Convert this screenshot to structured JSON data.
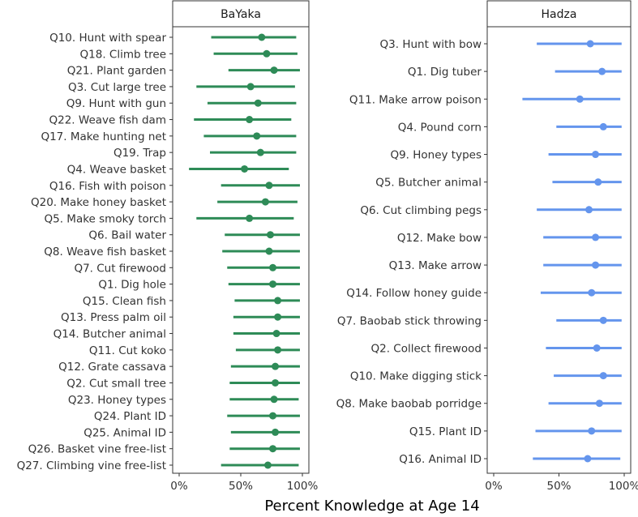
{
  "chart_data": {
    "type": "dot-and-whisker",
    "xlabel": "Percent Knowledge at Age 14",
    "xticks": [
      "0%",
      "50%",
      "100%"
    ],
    "xlim": [
      0,
      100
    ],
    "panels": [
      {
        "name": "BaYaka",
        "color": "#2e8b57",
        "items": [
          {
            "label": "Q10. Hunt with spear",
            "est": 67,
            "low": 26,
            "high": 95
          },
          {
            "label": "Q18. Climb tree",
            "est": 71,
            "low": 28,
            "high": 96
          },
          {
            "label": "Q21. Plant garden",
            "est": 77,
            "low": 40,
            "high": 98
          },
          {
            "label": "Q3. Cut large tree",
            "est": 58,
            "low": 14,
            "high": 94
          },
          {
            "label": "Q9. Hunt with gun",
            "est": 64,
            "low": 23,
            "high": 95
          },
          {
            "label": "Q22. Weave fish dam",
            "est": 57,
            "low": 12,
            "high": 91
          },
          {
            "label": "Q17. Make hunting net",
            "est": 63,
            "low": 20,
            "high": 95
          },
          {
            "label": "Q19. Trap",
            "est": 66,
            "low": 25,
            "high": 95
          },
          {
            "label": "Q4. Weave basket",
            "est": 53,
            "low": 8,
            "high": 89
          },
          {
            "label": "Q16. Fish with poison",
            "est": 73,
            "low": 34,
            "high": 98
          },
          {
            "label": "Q20. Make honey basket",
            "est": 70,
            "low": 31,
            "high": 96
          },
          {
            "label": "Q5. Make smoky torch",
            "est": 57,
            "low": 14,
            "high": 93
          },
          {
            "label": "Q6. Bail water",
            "est": 74,
            "low": 37,
            "high": 98
          },
          {
            "label": "Q8. Weave fish basket",
            "est": 73,
            "low": 35,
            "high": 98
          },
          {
            "label": "Q7. Cut firewood",
            "est": 76,
            "low": 39,
            "high": 98
          },
          {
            "label": "Q1. Dig hole",
            "est": 76,
            "low": 40,
            "high": 98
          },
          {
            "label": "Q15. Clean fish",
            "est": 80,
            "low": 45,
            "high": 98
          },
          {
            "label": "Q13. Press palm oil",
            "est": 80,
            "low": 44,
            "high": 98
          },
          {
            "label": "Q14. Butcher animal",
            "est": 79,
            "low": 44,
            "high": 98
          },
          {
            "label": "Q11. Cut koko",
            "est": 80,
            "low": 46,
            "high": 98
          },
          {
            "label": "Q12. Grate cassava",
            "est": 78,
            "low": 42,
            "high": 98
          },
          {
            "label": "Q2. Cut small tree",
            "est": 78,
            "low": 41,
            "high": 98
          },
          {
            "label": "Q23. Honey types",
            "est": 77,
            "low": 41,
            "high": 97
          },
          {
            "label": "Q24. Plant ID",
            "est": 76,
            "low": 39,
            "high": 98
          },
          {
            "label": "Q25. Animal ID",
            "est": 78,
            "low": 42,
            "high": 98
          },
          {
            "label": "Q26. Basket vine free-list",
            "est": 76,
            "low": 41,
            "high": 98
          },
          {
            "label": "Q27. Climbing vine free-list",
            "est": 72,
            "low": 34,
            "high": 97
          }
        ]
      },
      {
        "name": "Hadza",
        "color": "#6495ed",
        "items": [
          {
            "label": "Q3. Hunt with bow",
            "est": 74,
            "low": 33,
            "high": 98
          },
          {
            "label": "Q1. Dig tuber",
            "est": 83,
            "low": 47,
            "high": 98
          },
          {
            "label": "Q11. Make arrow poison",
            "est": 66,
            "low": 22,
            "high": 97
          },
          {
            "label": "Q4. Pound corn",
            "est": 84,
            "low": 48,
            "high": 98
          },
          {
            "label": "Q9. Honey types",
            "est": 78,
            "low": 42,
            "high": 98
          },
          {
            "label": "Q5. Butcher animal",
            "est": 80,
            "low": 45,
            "high": 98
          },
          {
            "label": "Q6. Cut climbing pegs",
            "est": 73,
            "low": 33,
            "high": 98
          },
          {
            "label": "Q12. Make bow",
            "est": 78,
            "low": 38,
            "high": 98
          },
          {
            "label": "Q13. Make arrow",
            "est": 78,
            "low": 38,
            "high": 98
          },
          {
            "label": "Q14. Follow honey guide",
            "est": 75,
            "low": 36,
            "high": 98
          },
          {
            "label": "Q7. Baobab stick throwing",
            "est": 84,
            "low": 48,
            "high": 98
          },
          {
            "label": "Q2. Collect firewood",
            "est": 79,
            "low": 40,
            "high": 98
          },
          {
            "label": "Q10. Make digging stick",
            "est": 84,
            "low": 46,
            "high": 98
          },
          {
            "label": "Q8. Make baobab porridge",
            "est": 81,
            "low": 42,
            "high": 98
          },
          {
            "label": "Q15. Plant ID",
            "est": 75,
            "low": 32,
            "high": 98
          },
          {
            "label": "Q16. Animal ID",
            "est": 72,
            "low": 30,
            "high": 97
          }
        ]
      }
    ]
  }
}
